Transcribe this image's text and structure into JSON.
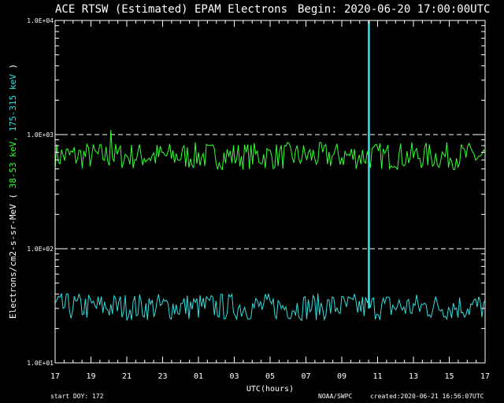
{
  "header": {
    "title": "ACE RTSW (Estimated) EPAM Electrons",
    "begin": "Begin: 2020-06-20 17:00:00UTC"
  },
  "footer": {
    "start_doy": "start DOY:  172",
    "source": "NOAA/SWPC",
    "created": "created:2020-06-21 16:56:07UTC"
  },
  "colors": {
    "background": "#000000",
    "axes": "#ffffff",
    "channel_38_53": "#33ff33",
    "channel_175_315": "#33dddd",
    "gap_marker": "#33dddd"
  },
  "chart_data": {
    "type": "line",
    "xlabel": "UTC(hours)",
    "ylabel_prefix": "Electrons/cm2-s-sr-MeV ( ",
    "ylabel_ch1": "38-53 keV,",
    "ylabel_ch2": "175-315 keV",
    "ylabel_suffix": " )",
    "yscale": "log",
    "ylim": [
      10,
      10000
    ],
    "xlim_hours": [
      0,
      24
    ],
    "x_tick_labels": [
      "17",
      "19",
      "21",
      "23",
      "01",
      "03",
      "05",
      "07",
      "09",
      "11",
      "13",
      "15",
      "17"
    ],
    "y_tick_labels": [
      "1.0E+01",
      "1.0E+02",
      "1.0E+03",
      "1.0E+04"
    ],
    "reference_lines": [
      100,
      1000
    ],
    "data_gap_hours": [
      17.5,
      17.55
    ],
    "series": [
      {
        "channel": "38-53 keV",
        "base": 650,
        "spikes": [
          {
            "hours": 3.1,
            "value": 1100
          }
        ]
      },
      {
        "channel": "175-315 keV",
        "base": 31
      }
    ]
  }
}
